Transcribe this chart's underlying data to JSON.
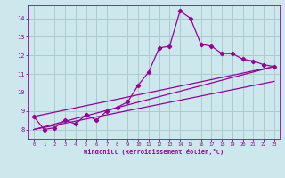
{
  "xlabel": "Windchill (Refroidissement éolien,°C)",
  "bg_color": "#cce8ec",
  "grid_color": "#aacccc",
  "line_color": "#990099",
  "xlim": [
    -0.5,
    23.5
  ],
  "ylim": [
    7.5,
    14.7
  ],
  "yticks": [
    8,
    9,
    10,
    11,
    12,
    13,
    14
  ],
  "xticks": [
    0,
    1,
    2,
    3,
    4,
    5,
    6,
    7,
    8,
    9,
    10,
    11,
    12,
    13,
    14,
    15,
    16,
    17,
    18,
    19,
    20,
    21,
    22,
    23
  ],
  "series1_x": [
    0,
    1,
    2,
    3,
    4,
    5,
    6,
    7,
    8,
    9,
    10,
    11,
    12,
    13,
    14,
    15,
    16,
    17,
    18,
    19,
    20,
    21,
    22,
    23
  ],
  "series1_y": [
    8.7,
    8.0,
    8.1,
    8.5,
    8.3,
    8.8,
    8.5,
    9.0,
    9.2,
    9.5,
    10.4,
    11.1,
    12.4,
    12.5,
    14.4,
    14.0,
    12.6,
    12.5,
    12.1,
    12.1,
    11.8,
    11.7,
    11.5,
    11.4
  ],
  "series2_x": [
    0,
    23
  ],
  "series2_y": [
    8.7,
    11.4
  ],
  "series3_x": [
    0,
    23
  ],
  "series3_y": [
    8.0,
    11.4
  ],
  "series4_x": [
    0,
    23
  ],
  "series4_y": [
    8.0,
    10.6
  ]
}
